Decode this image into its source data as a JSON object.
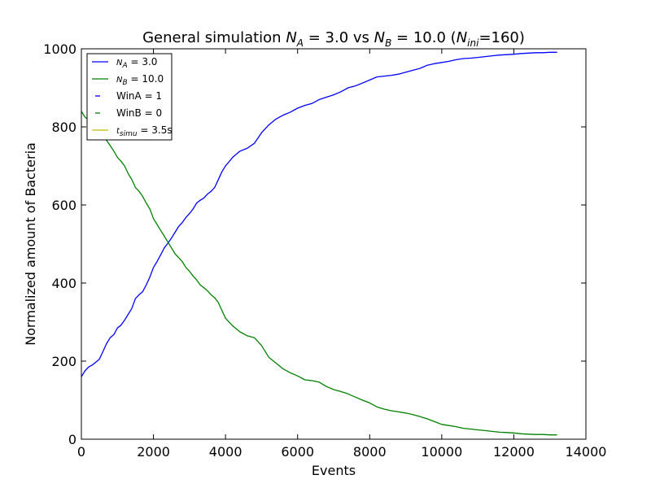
{
  "chart_data": {
    "type": "line",
    "title": {
      "prefix": "General simulation ",
      "na_symbol": "N",
      "na_sub": "A",
      "na_val": " = 3.0 vs ",
      "nb_symbol": "N",
      "nb_sub": "B",
      "nb_val": " = 10.0 (",
      "nini_symbol": "N",
      "nini_sub": "ini",
      "nini_val": "=160)"
    },
    "xlabel": "Events",
    "ylabel": "Normalized amount of Bacteria",
    "xlim": [
      0,
      14000
    ],
    "ylim": [
      0,
      1000
    ],
    "xticks": [
      "0",
      "2000",
      "4000",
      "6000",
      "8000",
      "10000",
      "12000",
      "14000"
    ],
    "yticks": [
      "0",
      "200",
      "400",
      "600",
      "800",
      "1000"
    ],
    "grid": false,
    "legend_position": "top-left",
    "colors": {
      "A": "#0000ff",
      "B": "#008000",
      "t": "#bfbf00"
    },
    "legend": [
      {
        "sym": "N",
        "sub": "A",
        "text": " = 3.0",
        "style": "solid",
        "color": "#0000ff"
      },
      {
        "sym": "N",
        "sub": "B",
        "text": " = 10.0",
        "style": "solid",
        "color": "#008000"
      },
      {
        "sym": "",
        "sub": "",
        "text": "WinA = 1",
        "style": "dash",
        "color": "#0000ff"
      },
      {
        "sym": "",
        "sub": "",
        "text": "WinB = 0",
        "style": "dash",
        "color": "#008000"
      },
      {
        "sym": "t",
        "sub": "simu",
        "text": " = 3.5s",
        "style": "solid",
        "color": "#bfbf00"
      }
    ],
    "series": [
      {
        "key": "A",
        "x": [
          0,
          100,
          200,
          300,
          400,
          500,
          600,
          700,
          800,
          900,
          1000,
          1100,
          1200,
          1300,
          1400,
          1500,
          1600,
          1700,
          1800,
          1900,
          2000,
          2100,
          2200,
          2300,
          2400,
          2500,
          2600,
          2700,
          2800,
          2900,
          3000,
          3100,
          3200,
          3300,
          3400,
          3500,
          3600,
          3700,
          3800,
          3900,
          4000,
          4200,
          4400,
          4600,
          4800,
          5000,
          5200,
          5400,
          5600,
          5800,
          6000,
          6200,
          6400,
          6600,
          6800,
          7000,
          7200,
          7400,
          7600,
          7800,
          8000,
          8200,
          8400,
          8600,
          8800,
          9000,
          9200,
          9400,
          9600,
          9800,
          10000,
          10200,
          10400,
          10600,
          10800,
          11000,
          11200,
          11400,
          11600,
          11800,
          12000,
          12200,
          12400,
          12600,
          12800,
          13000,
          13200
        ],
        "y": [
          160,
          175,
          185,
          190,
          197,
          205,
          225,
          245,
          260,
          268,
          285,
          292,
          305,
          320,
          335,
          360,
          370,
          378,
          395,
          415,
          440,
          455,
          472,
          490,
          502,
          515,
          530,
          545,
          555,
          568,
          578,
          590,
          605,
          612,
          618,
          628,
          635,
          645,
          665,
          685,
          700,
          722,
          738,
          745,
          758,
          785,
          805,
          820,
          830,
          838,
          848,
          855,
          860,
          870,
          876,
          882,
          890,
          900,
          905,
          912,
          920,
          928,
          930,
          932,
          935,
          940,
          945,
          950,
          958,
          962,
          965,
          968,
          972,
          975,
          976,
          978,
          980,
          982,
          984,
          985,
          986,
          988,
          989,
          990,
          990,
          991,
          991
        ]
      },
      {
        "key": "B",
        "x": [
          0,
          100,
          200,
          300,
          400,
          500,
          600,
          700,
          800,
          900,
          1000,
          1100,
          1200,
          1300,
          1400,
          1500,
          1600,
          1700,
          1800,
          1900,
          2000,
          2100,
          2200,
          2300,
          2400,
          2500,
          2600,
          2700,
          2800,
          2900,
          3000,
          3100,
          3200,
          3300,
          3400,
          3500,
          3600,
          3700,
          3800,
          3900,
          4000,
          4200,
          4400,
          4600,
          4800,
          5000,
          5200,
          5400,
          5600,
          5800,
          6000,
          6200,
          6400,
          6600,
          6800,
          7000,
          7200,
          7400,
          7600,
          7800,
          8000,
          8200,
          8400,
          8600,
          8800,
          9000,
          9200,
          9400,
          9600,
          9800,
          10000,
          10200,
          10400,
          10600,
          10800,
          11000,
          11200,
          11400,
          11600,
          11800,
          12000,
          12200,
          12400,
          12600,
          12800,
          13000,
          13200
        ],
        "y": [
          840,
          825,
          818,
          808,
          800,
          790,
          778,
          765,
          752,
          738,
          722,
          712,
          700,
          680,
          665,
          645,
          635,
          622,
          605,
          590,
          565,
          550,
          535,
          520,
          505,
          490,
          475,
          465,
          455,
          440,
          430,
          418,
          408,
          395,
          388,
          380,
          370,
          362,
          350,
          330,
          310,
          290,
          275,
          265,
          260,
          240,
          210,
          195,
          180,
          170,
          162,
          152,
          150,
          146,
          135,
          127,
          122,
          116,
          108,
          100,
          93,
          83,
          77,
          73,
          70,
          67,
          63,
          58,
          52,
          45,
          38,
          35,
          32,
          28,
          26,
          24,
          22,
          20,
          18,
          17,
          16,
          14,
          13,
          12,
          12,
          11,
          11
        ]
      }
    ]
  }
}
